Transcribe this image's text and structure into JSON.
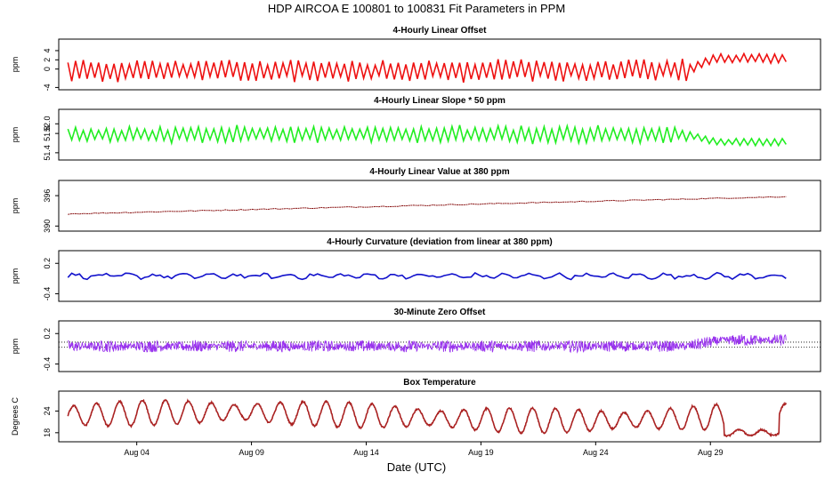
{
  "title": "HDP   AIRCOA E   100801 to 100831   Fit Parameters in PPM",
  "x_axis": {
    "label": "Date (UTC)",
    "ticks": [
      "Aug 04",
      "Aug 09",
      "Aug 14",
      "Aug 19",
      "Aug 24",
      "Aug 29"
    ],
    "tick_days": [
      4,
      9,
      14,
      19,
      24,
      29
    ],
    "range_days": [
      0.6,
      33.8
    ]
  },
  "chart_data": [
    {
      "type": "line",
      "title": "4-Hourly Linear Offset",
      "ylabel": "ppm",
      "ylim": [
        -4.5,
        6.5
      ],
      "yticks": [
        -4,
        0,
        2,
        4
      ],
      "ytick_labels": [
        "-4",
        "0",
        "2",
        "4"
      ],
      "reflines": [],
      "color": "#ee1111",
      "x_range_days": [
        1.0,
        32.3
      ],
      "series": {
        "name": "offset",
        "baseline": -0.3,
        "trend_end": 2.3,
        "trend_start_day": 28.0,
        "amplitude": 2.3,
        "period_days": 0.667,
        "approx_points": 188
      }
    },
    {
      "type": "line",
      "title": "4-Hourly Linear Slope * 50 ppm",
      "ylabel": "ppm",
      "ylim": [
        51.25,
        52.3
      ],
      "yticks": [
        51.4,
        51.8,
        52.0
      ],
      "ytick_labels": [
        "51.4",
        "51.8",
        "52.0"
      ],
      "reflines": [],
      "color": "#22ee22",
      "x_range_days": [
        1.0,
        32.3
      ],
      "series": {
        "name": "slope",
        "baseline": 51.78,
        "trend_end": 51.62,
        "trend_start_day": 28.0,
        "amplitude": 0.17,
        "period_days": 0.667,
        "approx_points": 188
      }
    },
    {
      "type": "line",
      "title": "4-Hourly Linear Value at 380 ppm",
      "ylabel": "ppm",
      "ylim": [
        389,
        399
      ],
      "yticks": [
        390,
        396
      ],
      "ytick_labels": [
        "390",
        "396"
      ],
      "reflines": [],
      "color": "#881111",
      "x_range_days": [
        1.0,
        32.3
      ],
      "series": {
        "name": "value_at_380",
        "start": 392.4,
        "end": 395.8,
        "amplitude": 0.2,
        "approx_points": 188
      }
    },
    {
      "type": "line",
      "title": "4-Hourly Curvature (deviation from linear at 380 ppm)",
      "ylabel": "ppm",
      "ylim": [
        -0.55,
        0.45
      ],
      "yticks": [
        -0.4,
        0.2
      ],
      "ytick_labels": [
        "-0.4",
        "0.2"
      ],
      "reflines": [],
      "color": "#1111cc",
      "x_range_days": [
        1.0,
        32.3
      ],
      "series": {
        "name": "curvature",
        "baseline": -0.05,
        "amplitude": 0.05,
        "approx_points": 188
      }
    },
    {
      "type": "line",
      "title": "30-Minute Zero Offset",
      "ylabel": "ppm",
      "ylim": [
        -0.55,
        0.45
      ],
      "yticks": [
        -0.4,
        0.2
      ],
      "ytick_labels": [
        "-0.4",
        "0.2"
      ],
      "reflines": [
        0.03,
        -0.07
      ],
      "color": "#9933ee",
      "x_range_days": [
        1.0,
        32.3
      ],
      "series": {
        "name": "zero_offset",
        "baseline": -0.05,
        "trend_end": 0.07,
        "trend_start_day": 28.0,
        "amplitude": 0.2,
        "approx_points": 1500
      }
    },
    {
      "type": "line",
      "title": "Box Temperature",
      "ylabel": "Degrees C",
      "ylim": [
        15.5,
        29.5
      ],
      "yticks": [
        18,
        24
      ],
      "ytick_labels": [
        "18",
        "24"
      ],
      "reflines": [],
      "color": "#aa2222",
      "x_range_days": [
        1.0,
        32.3
      ],
      "series": {
        "name": "box_temperature",
        "daily_min": 20,
        "daily_max": 27,
        "end_drop_min": 16.5,
        "period_days": 1.0,
        "approx_points": 1500
      }
    }
  ]
}
